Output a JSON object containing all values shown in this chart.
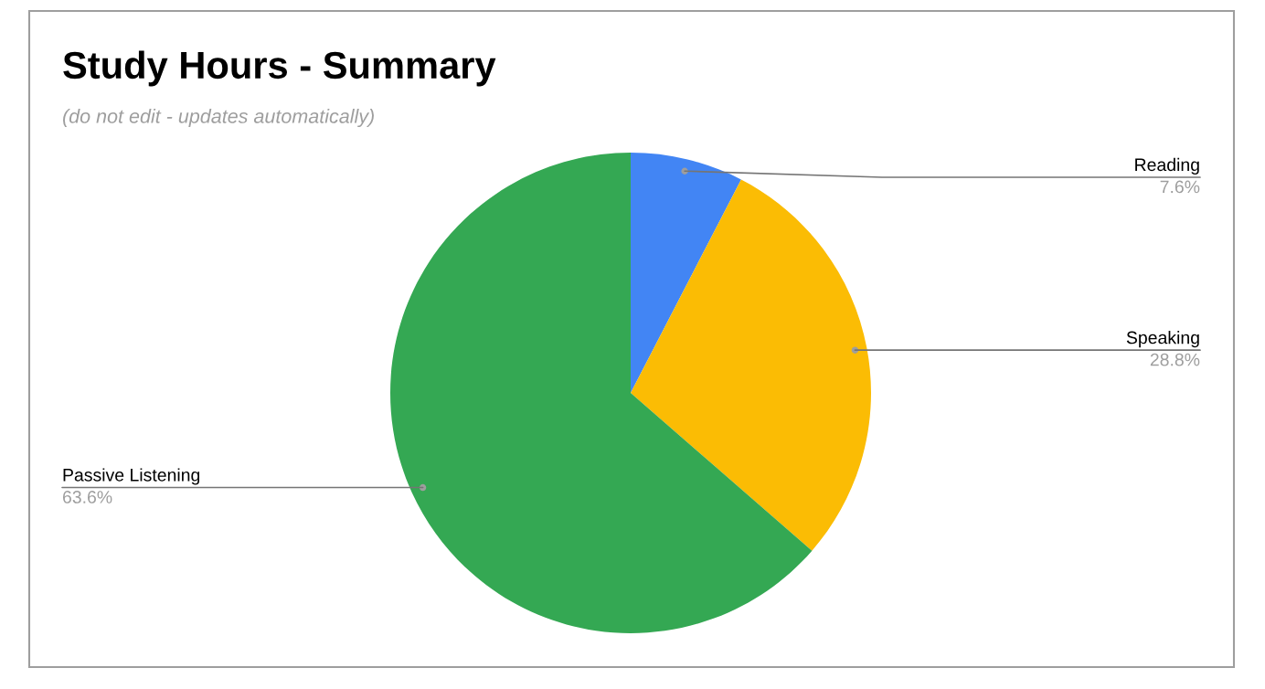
{
  "chart_data": {
    "type": "pie",
    "title": "Study Hours - Summary",
    "subtitle": "(do not edit - updates automatically)",
    "categories": [
      "Reading",
      "Speaking",
      "Passive Listening"
    ],
    "values": [
      7.6,
      28.8,
      63.6
    ],
    "colors": [
      "#4285f4",
      "#fbbc04",
      "#34a853"
    ],
    "value_labels": [
      "7.6%",
      "28.8%",
      "63.6%"
    ]
  }
}
